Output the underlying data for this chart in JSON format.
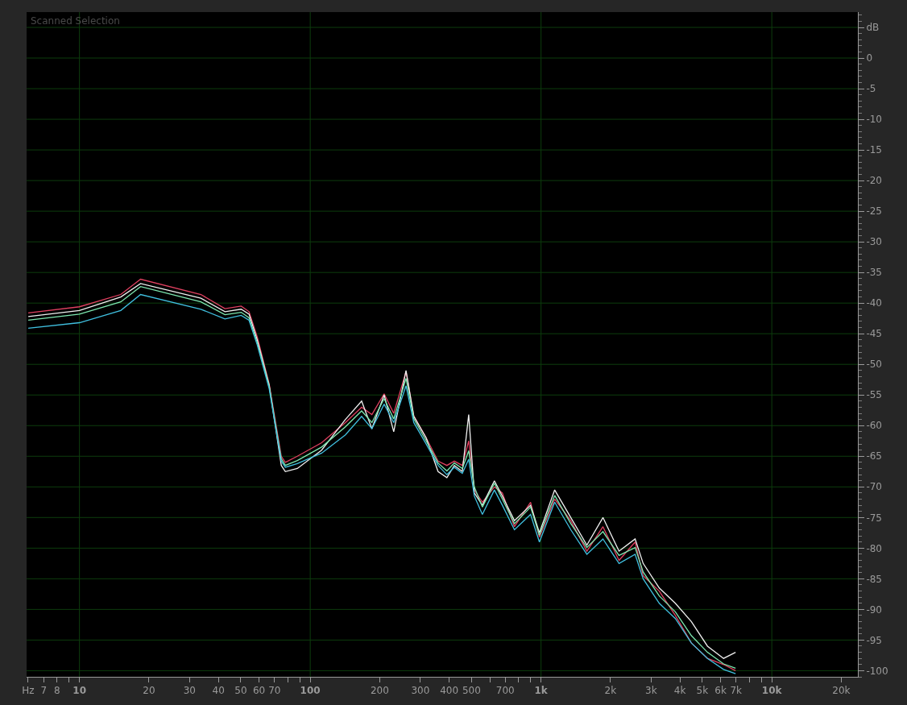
{
  "chart_data": {
    "type": "line",
    "xlabel": "Hz",
    "ylabel": "dB",
    "annotations": [
      "Scanned Selection"
    ],
    "log": "x",
    "grid": true,
    "marker": "none",
    "line_style": "solid",
    "xlim": [
      5.9,
      23600
    ],
    "ylim": [
      -101,
      7.5
    ],
    "xticks": [
      7,
      8,
      {
        "value": 9,
        "label": null
      },
      10,
      20,
      30,
      40,
      50,
      60,
      70,
      {
        "value": 80,
        "label": null
      },
      {
        "value": 90,
        "label": null
      },
      100,
      200,
      300,
      400,
      500,
      {
        "value": 600,
        "label": null
      },
      700,
      {
        "value": 800,
        "label": null
      },
      {
        "value": 900,
        "label": null
      },
      {
        "value": 1000,
        "label": "1k"
      },
      {
        "value": 2000,
        "label": "2k"
      },
      {
        "value": 3000,
        "label": "3k"
      },
      {
        "value": 4000,
        "label": "4k"
      },
      {
        "value": 5000,
        "label": "5k"
      },
      {
        "value": 6000,
        "label": "6k"
      },
      {
        "value": 7000,
        "label": "7k"
      },
      {
        "value": 8000,
        "label": null
      },
      {
        "value": 9000,
        "label": null
      },
      {
        "value": 10000,
        "label": "10k"
      },
      {
        "value": 20000,
        "label": "20k"
      }
    ],
    "yticks": [
      0,
      -5,
      -10,
      -15,
      -20,
      -25,
      -30,
      -35,
      -40,
      -45,
      -50,
      -55,
      -60,
      -65,
      -70,
      -75,
      -80,
      -85,
      -90,
      -95,
      -100
    ],
    "x": [
      6,
      10,
      15.1,
      18.4,
      33.6,
      42.7,
      50.2,
      54.3,
      58.9,
      66.4,
      74.9,
      78,
      87.9,
      112,
      142,
      167,
      185,
      209,
      230,
      260,
      281,
      318,
      358,
      391,
      421,
      456,
      486,
      514,
      557,
      628,
      680,
      767,
      901,
      984,
      1146,
      1346,
      1580,
      1855,
      2178,
      2557,
      2771,
      3254,
      3820,
      4485,
      5264,
      6181,
      6966
    ],
    "series": [
      {
        "color": "#e04060",
        "values": [
          -41.6,
          -40.6,
          -38.6,
          -36.1,
          -38.6,
          -40.9,
          -40.5,
          -41.4,
          -45.5,
          -53.2,
          -65.0,
          -66.0,
          -65.0,
          -62.8,
          -59.5,
          -57.0,
          -58.2,
          -54.8,
          -58.0,
          -51.2,
          -58.4,
          -62.0,
          -65.8,
          -66.5,
          -65.8,
          -66.5,
          -62.5,
          -70.5,
          -72.5,
          -70.0,
          -71.0,
          -76.5,
          -72.5,
          -78.2,
          -72.0,
          -75.5,
          -80.5,
          -76.5,
          -82.0,
          -79.0,
          -84.5,
          -87.0,
          -91.0,
          -95.5,
          -98.0,
          -99.0,
          -100.0
        ]
      },
      {
        "color": "#f0f0f0",
        "values": [
          -42.2,
          -41.2,
          -39.0,
          -36.8,
          -39.2,
          -41.4,
          -41.0,
          -41.8,
          -46.0,
          -53.4,
          -66.5,
          -67.5,
          -67.0,
          -64.0,
          -59.0,
          -56.0,
          -60.5,
          -55.0,
          -61.0,
          -51.0,
          -58.5,
          -62.0,
          -67.5,
          -68.5,
          -66.5,
          -67.5,
          -58.2,
          -71.0,
          -73.0,
          -69.0,
          -71.5,
          -75.5,
          -73.0,
          -77.5,
          -70.5,
          -75.0,
          -79.5,
          -75.0,
          -80.5,
          -78.5,
          -82.5,
          -86.5,
          -89.0,
          -92.0,
          -96.0,
          -98.0,
          -97.0
        ]
      },
      {
        "color": "#7de8b0",
        "values": [
          -42.8,
          -41.8,
          -39.8,
          -37.3,
          -39.8,
          -41.9,
          -41.5,
          -42.4,
          -46.4,
          -53.6,
          -65.4,
          -66.5,
          -65.7,
          -63.5,
          -60.2,
          -57.6,
          -59.5,
          -55.6,
          -58.9,
          -52.3,
          -58.9,
          -62.5,
          -66.1,
          -67.4,
          -66.1,
          -67.0,
          -64.1,
          -70.0,
          -73.3,
          -69.4,
          -72.0,
          -76.0,
          -73.3,
          -77.9,
          -71.4,
          -76.0,
          -79.9,
          -77.3,
          -81.2,
          -79.9,
          -83.9,
          -87.8,
          -90.4,
          -94.3,
          -97.0,
          -98.9,
          -99.6
        ]
      },
      {
        "color": "#40c0e0",
        "values": [
          -44.1,
          -43.2,
          -41.2,
          -38.6,
          -41.0,
          -42.6,
          -42.0,
          -42.8,
          -46.8,
          -54.0,
          -65.8,
          -66.8,
          -66.2,
          -64.5,
          -61.5,
          -58.5,
          -60.5,
          -56.5,
          -59.5,
          -53.5,
          -59.5,
          -63.0,
          -66.5,
          -68.0,
          -66.8,
          -67.8,
          -65.5,
          -71.5,
          -74.5,
          -70.5,
          -73.0,
          -77.0,
          -74.5,
          -79.0,
          -72.5,
          -77.0,
          -81.0,
          -78.5,
          -82.5,
          -81.0,
          -85.0,
          -89.0,
          -91.5,
          -95.5,
          -98.0,
          -99.8,
          -100.5
        ]
      }
    ]
  }
}
